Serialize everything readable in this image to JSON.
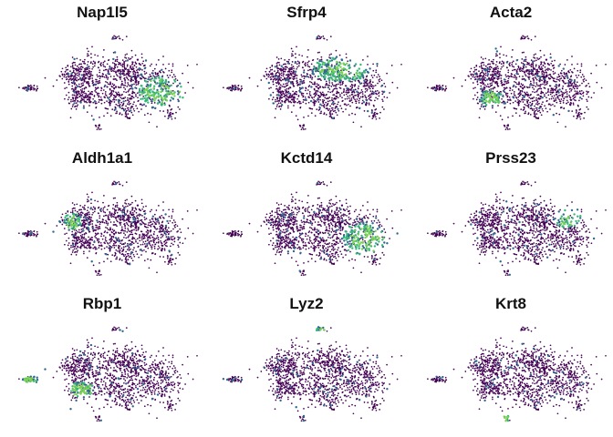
{
  "chart_data": {
    "type": "scatter",
    "description_kind": "tSNE feature plots, expression colored by viridis scale",
    "layout": {
      "rows": 3,
      "cols": 3
    },
    "axes_visible": false,
    "legend": "none",
    "colors": {
      "low": "#440154",
      "mid": "#31688e",
      "midhigh": "#35b779",
      "high": "#7ad151",
      "highest": "#fde725"
    },
    "panels": [
      {
        "title": "Nap1l5",
        "high_regions": [
          "right-lower"
        ]
      },
      {
        "title": "Sfrp4",
        "high_regions": [
          "top-center-right"
        ]
      },
      {
        "title": "Acta2",
        "high_regions": [
          "left-lower"
        ]
      },
      {
        "title": "Aldh1a1",
        "high_regions": [
          "left-upper"
        ]
      },
      {
        "title": "Kctd14",
        "high_regions": [
          "right-lower"
        ]
      },
      {
        "title": "Prss23",
        "high_regions": [
          "right-upper"
        ]
      },
      {
        "title": "Rbp1",
        "high_regions": [
          "far-left-strip",
          "left-lower"
        ]
      },
      {
        "title": "Lyz2",
        "high_regions": [
          "top-island"
        ]
      },
      {
        "title": "Krt8",
        "high_regions": [
          "bottom-island"
        ]
      }
    ]
  }
}
